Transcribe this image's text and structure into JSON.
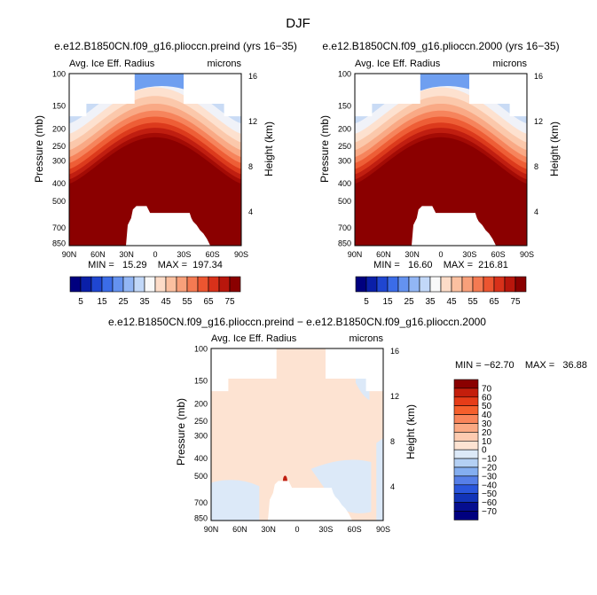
{
  "page_title": "DJF",
  "chart_data": [
    {
      "type": "heatmap",
      "title": "e.e12.B1850CN.f09_g16.plioccn.preind (yrs 16−35)",
      "subtitle_left": "Avg. Ice Eff. Radius",
      "units": "microns",
      "ylabel": "Pressure (mb)",
      "ylabel_right": "Height (km)",
      "x_ticks": [
        "90N",
        "60N",
        "30N",
        "0",
        "30S",
        "60S",
        "90S"
      ],
      "y_ticks": [
        "100",
        "150",
        "200",
        "250",
        "300",
        "400",
        "500",
        "700",
        "850"
      ],
      "y_right_ticks": [
        "16",
        "12",
        "8",
        "4"
      ],
      "min_max_text": "MIN =   15.29    MAX =  197.34",
      "min": 15.29,
      "max": 197.34
    },
    {
      "type": "heatmap",
      "title": "e.e12.B1850CN.f09_g16.plioccn.2000 (yrs 16−35)",
      "subtitle_left": "Avg. Ice Eff. Radius",
      "units": "microns",
      "ylabel": "Pressure (mb)",
      "ylabel_right": "Height (km)",
      "x_ticks": [
        "90N",
        "60N",
        "30N",
        "0",
        "30S",
        "60S",
        "90S"
      ],
      "y_ticks": [
        "100",
        "150",
        "200",
        "250",
        "300",
        "400",
        "500",
        "700",
        "850"
      ],
      "y_right_ticks": [
        "16",
        "12",
        "8",
        "4"
      ],
      "min_max_text": "MIN =   16.60    MAX =  216.81",
      "min": 16.6,
      "max": 216.81
    },
    {
      "type": "heatmap",
      "title": "e.e12.B1850CN.f09_g16.plioccn.preind − e.e12.B1850CN.f09_g16.plioccn.2000",
      "subtitle_left": "Avg. Ice Eff. Radius",
      "units": "microns",
      "ylabel": "Pressure (mb)",
      "ylabel_right": "Height (km)",
      "x_ticks": [
        "90N",
        "60N",
        "30N",
        "0",
        "30S",
        "60S",
        "90S"
      ],
      "y_ticks": [
        "100",
        "150",
        "200",
        "250",
        "300",
        "400",
        "500",
        "700",
        "850"
      ],
      "y_right_ticks": [
        "16",
        "12",
        "8",
        "4"
      ],
      "min_max_text": "MIN = −62.70    MAX =   36.88",
      "min": -62.7,
      "max": 36.88
    }
  ],
  "colorbar_top": {
    "labels": [
      "5",
      "15",
      "25",
      "35",
      "45",
      "55",
      "65",
      "75"
    ],
    "colors": [
      "#00007f",
      "#0a1fa8",
      "#1f46d1",
      "#3b6ce8",
      "#6492f0",
      "#92b6f5",
      "#c2d8f8",
      "#f9f9f9",
      "#fddcc8",
      "#fbc0a0",
      "#f8a07a",
      "#f47a52",
      "#ec5530",
      "#d8311a",
      "#b8160c",
      "#8a0000"
    ]
  },
  "colorbar_diff": {
    "labels": [
      "70",
      "60",
      "50",
      "40",
      "30",
      "20",
      "10",
      "0",
      "−10",
      "−20",
      "−30",
      "−40",
      "−50",
      "−60",
      "−70"
    ],
    "colors": [
      "#8a0000",
      "#c41e0c",
      "#e63c18",
      "#f55f2c",
      "#f9855a",
      "#fba983",
      "#fdcbb0",
      "#fde3d2",
      "#dce9f8",
      "#b4d0f4",
      "#84aef0",
      "#567fe8",
      "#2a56dc",
      "#1234b8",
      "#050e8f",
      "#00007f"
    ]
  },
  "shading": {
    "low": "#8b0000",
    "levels": [
      "#a30b05",
      "#c01e10",
      "#dc3a1c",
      "#ee5e36",
      "#f6845c",
      "#f9a985",
      "#fbc8ab",
      "#fde1cf",
      "#f0f2f8",
      "#c9dbf5",
      "#9bbff3",
      "#6f9ff0",
      "#4a7fe8"
    ],
    "diff_base": "#fde3d2",
    "diff_neg": "#dce9f8"
  }
}
